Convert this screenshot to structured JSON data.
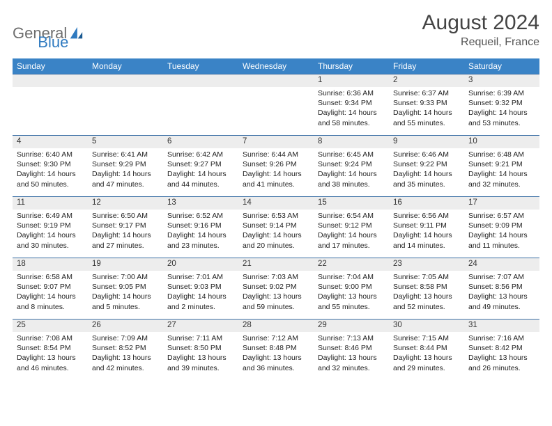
{
  "brand": {
    "part1": "General",
    "part2": "Blue"
  },
  "title": "August 2024",
  "location": "Requeil, France",
  "colors": {
    "header_bg": "#3a83c6",
    "header_fg": "#ffffff",
    "daynum_bg": "#ededed",
    "cell_border": "#3a6ea5",
    "title_color": "#444444",
    "text_color": "#222222",
    "brand_gray": "#6e6e6e",
    "brand_blue": "#2f7ac0"
  },
  "typography": {
    "title_fontsize": 30,
    "location_fontsize": 16,
    "header_fontsize": 12,
    "daynum_fontsize": 11.5,
    "body_fontsize": 10.5
  },
  "weekdays": [
    "Sunday",
    "Monday",
    "Tuesday",
    "Wednesday",
    "Thursday",
    "Friday",
    "Saturday"
  ],
  "weeks": [
    [
      {
        "n": "",
        "sr": "",
        "ss": "",
        "dl": ""
      },
      {
        "n": "",
        "sr": "",
        "ss": "",
        "dl": ""
      },
      {
        "n": "",
        "sr": "",
        "ss": "",
        "dl": ""
      },
      {
        "n": "",
        "sr": "",
        "ss": "",
        "dl": ""
      },
      {
        "n": "1",
        "sr": "Sunrise: 6:36 AM",
        "ss": "Sunset: 9:34 PM",
        "dl": "Daylight: 14 hours and 58 minutes."
      },
      {
        "n": "2",
        "sr": "Sunrise: 6:37 AM",
        "ss": "Sunset: 9:33 PM",
        "dl": "Daylight: 14 hours and 55 minutes."
      },
      {
        "n": "3",
        "sr": "Sunrise: 6:39 AM",
        "ss": "Sunset: 9:32 PM",
        "dl": "Daylight: 14 hours and 53 minutes."
      }
    ],
    [
      {
        "n": "4",
        "sr": "Sunrise: 6:40 AM",
        "ss": "Sunset: 9:30 PM",
        "dl": "Daylight: 14 hours and 50 minutes."
      },
      {
        "n": "5",
        "sr": "Sunrise: 6:41 AM",
        "ss": "Sunset: 9:29 PM",
        "dl": "Daylight: 14 hours and 47 minutes."
      },
      {
        "n": "6",
        "sr": "Sunrise: 6:42 AM",
        "ss": "Sunset: 9:27 PM",
        "dl": "Daylight: 14 hours and 44 minutes."
      },
      {
        "n": "7",
        "sr": "Sunrise: 6:44 AM",
        "ss": "Sunset: 9:26 PM",
        "dl": "Daylight: 14 hours and 41 minutes."
      },
      {
        "n": "8",
        "sr": "Sunrise: 6:45 AM",
        "ss": "Sunset: 9:24 PM",
        "dl": "Daylight: 14 hours and 38 minutes."
      },
      {
        "n": "9",
        "sr": "Sunrise: 6:46 AM",
        "ss": "Sunset: 9:22 PM",
        "dl": "Daylight: 14 hours and 35 minutes."
      },
      {
        "n": "10",
        "sr": "Sunrise: 6:48 AM",
        "ss": "Sunset: 9:21 PM",
        "dl": "Daylight: 14 hours and 32 minutes."
      }
    ],
    [
      {
        "n": "11",
        "sr": "Sunrise: 6:49 AM",
        "ss": "Sunset: 9:19 PM",
        "dl": "Daylight: 14 hours and 30 minutes."
      },
      {
        "n": "12",
        "sr": "Sunrise: 6:50 AM",
        "ss": "Sunset: 9:17 PM",
        "dl": "Daylight: 14 hours and 27 minutes."
      },
      {
        "n": "13",
        "sr": "Sunrise: 6:52 AM",
        "ss": "Sunset: 9:16 PM",
        "dl": "Daylight: 14 hours and 23 minutes."
      },
      {
        "n": "14",
        "sr": "Sunrise: 6:53 AM",
        "ss": "Sunset: 9:14 PM",
        "dl": "Daylight: 14 hours and 20 minutes."
      },
      {
        "n": "15",
        "sr": "Sunrise: 6:54 AM",
        "ss": "Sunset: 9:12 PM",
        "dl": "Daylight: 14 hours and 17 minutes."
      },
      {
        "n": "16",
        "sr": "Sunrise: 6:56 AM",
        "ss": "Sunset: 9:11 PM",
        "dl": "Daylight: 14 hours and 14 minutes."
      },
      {
        "n": "17",
        "sr": "Sunrise: 6:57 AM",
        "ss": "Sunset: 9:09 PM",
        "dl": "Daylight: 14 hours and 11 minutes."
      }
    ],
    [
      {
        "n": "18",
        "sr": "Sunrise: 6:58 AM",
        "ss": "Sunset: 9:07 PM",
        "dl": "Daylight: 14 hours and 8 minutes."
      },
      {
        "n": "19",
        "sr": "Sunrise: 7:00 AM",
        "ss": "Sunset: 9:05 PM",
        "dl": "Daylight: 14 hours and 5 minutes."
      },
      {
        "n": "20",
        "sr": "Sunrise: 7:01 AM",
        "ss": "Sunset: 9:03 PM",
        "dl": "Daylight: 14 hours and 2 minutes."
      },
      {
        "n": "21",
        "sr": "Sunrise: 7:03 AM",
        "ss": "Sunset: 9:02 PM",
        "dl": "Daylight: 13 hours and 59 minutes."
      },
      {
        "n": "22",
        "sr": "Sunrise: 7:04 AM",
        "ss": "Sunset: 9:00 PM",
        "dl": "Daylight: 13 hours and 55 minutes."
      },
      {
        "n": "23",
        "sr": "Sunrise: 7:05 AM",
        "ss": "Sunset: 8:58 PM",
        "dl": "Daylight: 13 hours and 52 minutes."
      },
      {
        "n": "24",
        "sr": "Sunrise: 7:07 AM",
        "ss": "Sunset: 8:56 PM",
        "dl": "Daylight: 13 hours and 49 minutes."
      }
    ],
    [
      {
        "n": "25",
        "sr": "Sunrise: 7:08 AM",
        "ss": "Sunset: 8:54 PM",
        "dl": "Daylight: 13 hours and 46 minutes."
      },
      {
        "n": "26",
        "sr": "Sunrise: 7:09 AM",
        "ss": "Sunset: 8:52 PM",
        "dl": "Daylight: 13 hours and 42 minutes."
      },
      {
        "n": "27",
        "sr": "Sunrise: 7:11 AM",
        "ss": "Sunset: 8:50 PM",
        "dl": "Daylight: 13 hours and 39 minutes."
      },
      {
        "n": "28",
        "sr": "Sunrise: 7:12 AM",
        "ss": "Sunset: 8:48 PM",
        "dl": "Daylight: 13 hours and 36 minutes."
      },
      {
        "n": "29",
        "sr": "Sunrise: 7:13 AM",
        "ss": "Sunset: 8:46 PM",
        "dl": "Daylight: 13 hours and 32 minutes."
      },
      {
        "n": "30",
        "sr": "Sunrise: 7:15 AM",
        "ss": "Sunset: 8:44 PM",
        "dl": "Daylight: 13 hours and 29 minutes."
      },
      {
        "n": "31",
        "sr": "Sunrise: 7:16 AM",
        "ss": "Sunset: 8:42 PM",
        "dl": "Daylight: 13 hours and 26 minutes."
      }
    ]
  ]
}
